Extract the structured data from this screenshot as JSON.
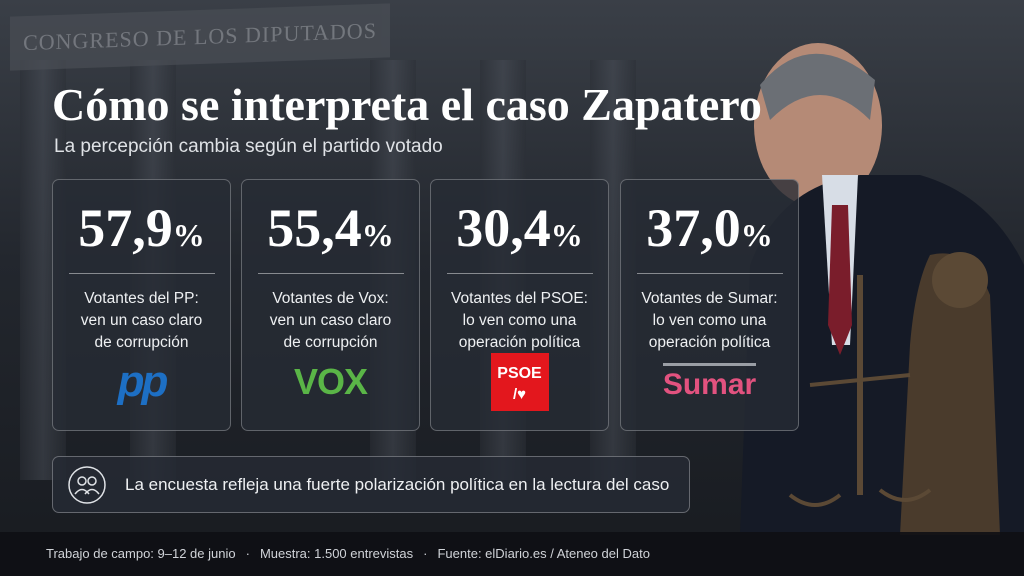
{
  "background_sign": "CONGRESO DE LOS DIPUTADOS",
  "header": {
    "title": "Cómo se interpreta el caso Zapatero",
    "subtitle": "La percepción cambia según el partido votado"
  },
  "cards": [
    {
      "value": "57,9",
      "unit": "%",
      "label_lines": [
        "Votantes del PP:",
        "ven un caso claro",
        "de corrupción"
      ],
      "logo": "pp"
    },
    {
      "value": "55,4",
      "unit": "%",
      "label_lines": [
        "Votantes de Vox:",
        "ven un caso claro",
        "de corrupción"
      ],
      "logo": "VOX"
    },
    {
      "value": "30,4",
      "unit": "%",
      "label_lines": [
        "Votantes del PSOE:",
        "lo ven como una",
        "operación política"
      ],
      "logo": "PSOE"
    },
    {
      "value": "37,0",
      "unit": "%",
      "label_lines": [
        "Votantes de Sumar:",
        "lo ven como una",
        "operación política"
      ],
      "logo": "Sumar"
    }
  ],
  "note": "La encuesta refleja una fuerte polarización política en la lectura del caso",
  "footer": [
    "Trabajo de campo: 9–12 de junio",
    "Muestra: 1.500 entrevistas",
    "Fuente: elDiario.es / Ateneo del Dato"
  ]
}
